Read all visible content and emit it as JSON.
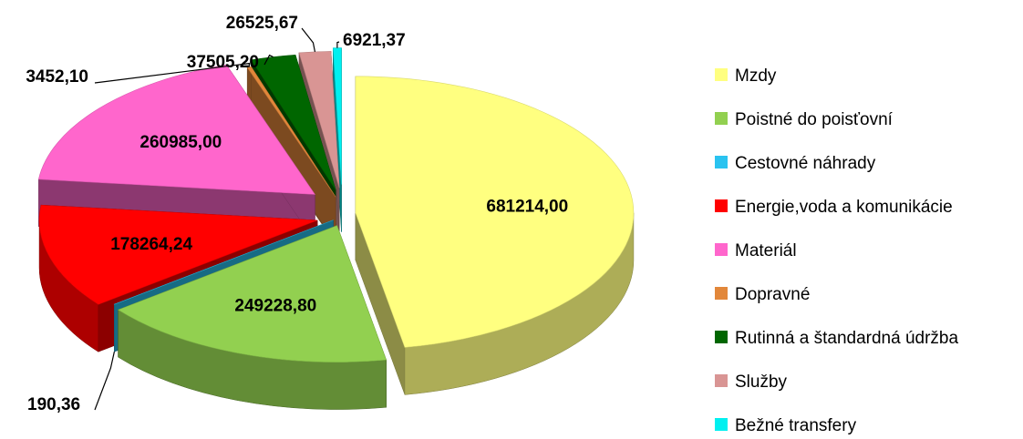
{
  "chart_data": {
    "type": "pie",
    "title": "",
    "categories": [
      "Mzdy",
      "Poistné do poisťovní",
      "Cestovné náhrady",
      "Energie,voda a komunikácie",
      "Materiál",
      "Dopravné",
      "Rutinná a štandardná údržba",
      "Služby",
      "Bežné transfery"
    ],
    "values": [
      681214.0,
      249228.8,
      190.36,
      178264.24,
      260985.0,
      3452.1,
      37505.2,
      26525.67,
      6921.37
    ],
    "value_labels": [
      "681214,00",
      "249228,80",
      "190,36",
      "178264,24",
      "260985,00",
      "3452,10",
      "37505,20",
      "26525,67",
      "6921,37"
    ],
    "colors": [
      "#FFFF80",
      "#92D050",
      "#2AC3F0",
      "#FF0000",
      "#FF66CC",
      "#E2873A",
      "#006600",
      "#D99594",
      "#00F0F0"
    ],
    "style": "3d-exploded",
    "legend_position": "right"
  }
}
